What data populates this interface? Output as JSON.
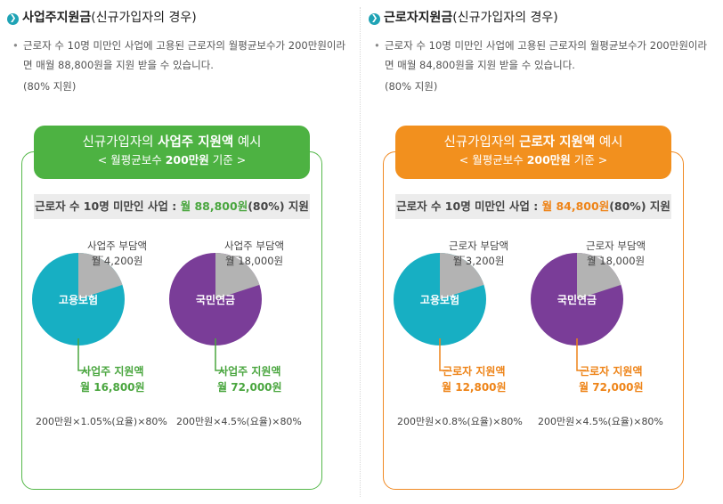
{
  "left": {
    "title_main": "사업주지원금",
    "title_paren": "(신규가입자의 경우)",
    "desc": "근로자 수 10명 미만인 사업에 고용된 근로자의 월평균보수가 200만원이라면 매월 88,800원을 지원 받을 수 있습니다.",
    "note": "(80% 지원)",
    "pill_pre": "신규가입자의 ",
    "pill_bold": "사업주 지원액",
    "pill_post": " 예시",
    "sub_pre": "< 월평균보수 ",
    "sub_bold": "200만원",
    "sub_post": " 기준 >",
    "bar_pre": "근로자 수 10명 미만인 사업 : ",
    "bar_amt": "월 88,800원",
    "bar_post": "(80%) 지원",
    "pies": [
      {
        "center": "고용보험",
        "color": "#17afc3",
        "share_pct": 20,
        "top1": "사업주 부담액",
        "top2": "월 4,200원",
        "bot1": "사업주 지원액",
        "bot2": "월 16,800원",
        "formula": "200만원×1.05%(요율)×80%"
      },
      {
        "center": "국민연금",
        "color": "#7a3d98",
        "share_pct": 20,
        "top1": "사업주 부담액",
        "top2": "월 18,000원",
        "bot1": "사업주 지원액",
        "bot2": "월 72,000원",
        "formula": "200만원×4.5%(요율)×80%"
      }
    ]
  },
  "right": {
    "title_main": "근로자지원금",
    "title_paren": "(신규가입자의 경우)",
    "desc": "근로자 수 10명 미만인 사업에 고용된 근로자의 월평균보수가 200만원이라면 매월 84,800원을 지원 받을 수 있습니다.",
    "note": "(80% 지원)",
    "pill_pre": "신규가입자의 ",
    "pill_bold": "근로자 지원액",
    "pill_post": " 예시",
    "sub_pre": "< 월평균보수 ",
    "sub_bold": "200만원",
    "sub_post": " 기준 >",
    "bar_pre": "근로자 수 10명 미만인 사업 : ",
    "bar_amt": "월 84,800원",
    "bar_post": "(80%) 지원",
    "pies": [
      {
        "center": "고용보험",
        "color": "#17afc3",
        "share_pct": 20,
        "top1": "근로자 부담액",
        "top2": "월 3,200원",
        "bot1": "근로자 지원액",
        "bot2": "월 12,800원",
        "formula": "200만원×0.8%(요율)×80%"
      },
      {
        "center": "국민연금",
        "color": "#7a3d98",
        "share_pct": 20,
        "top1": "근로자 부담액",
        "top2": "월 18,000원",
        "bot1": "근로자 지원액",
        "bot2": "월 72,000원",
        "formula": "200만원×4.5%(요율)×80%"
      }
    ]
  },
  "icons": {
    "title": "chevron-right-icon"
  },
  "colors": {
    "green": "#4db242",
    "orange": "#f2901e",
    "gray_slice": "#b3b3b3"
  }
}
